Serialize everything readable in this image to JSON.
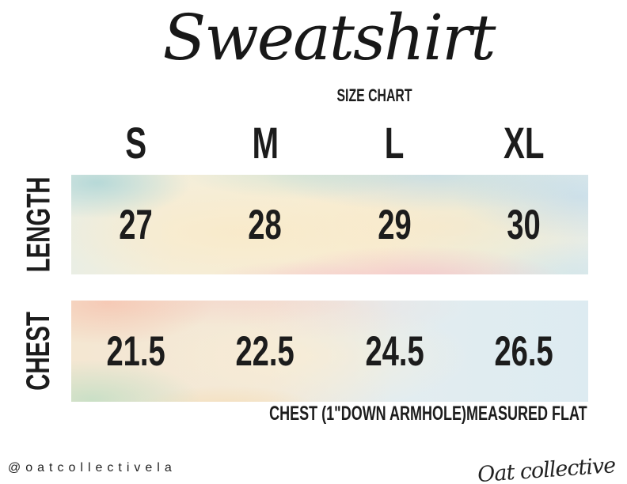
{
  "title": {
    "script": "Sweatshirt",
    "subtitle": "SIZE CHART"
  },
  "table": {
    "columns": [
      "S",
      "M",
      "L",
      "XL"
    ],
    "rows": [
      {
        "label": "LENGTH",
        "values": [
          "27",
          "28",
          "29",
          "30"
        ]
      },
      {
        "label": "CHEST",
        "values": [
          "21.5",
          "22.5",
          "24.5",
          "26.5"
        ]
      }
    ]
  },
  "note": "CHEST (1\"DOWN ARMHOLE)MEASURED FLAT",
  "footer": {
    "handle": "@oatcollectivela",
    "brand": "Oat collective"
  },
  "chart_data": {
    "type": "table",
    "title": "Sweatshirt Size Chart",
    "categories": [
      "S",
      "M",
      "L",
      "XL"
    ],
    "series": [
      {
        "name": "LENGTH",
        "values": [
          27,
          28,
          29,
          30
        ]
      },
      {
        "name": "CHEST",
        "values": [
          21.5,
          22.5,
          24.5,
          26.5
        ]
      }
    ],
    "note": "CHEST (1\"DOWN ARMHOLE)MEASURED FLAT"
  },
  "colors": {
    "text": "#1c1c1c",
    "background": "#ffffff",
    "watercolor_palette": [
      "#cfe4e6",
      "#cfe0ee",
      "#f8ecd0",
      "#f7c9d4",
      "#f6c0ac",
      "#bcddc2",
      "#ddebf1"
    ]
  }
}
